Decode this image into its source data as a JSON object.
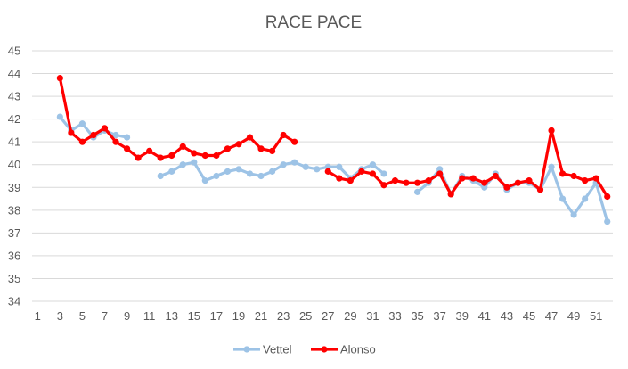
{
  "chart_data": {
    "type": "line",
    "title": "RACE PACE",
    "xlabel": "",
    "ylabel": "",
    "ylim": [
      34,
      45
    ],
    "yticks": [
      34,
      35,
      36,
      37,
      38,
      39,
      40,
      41,
      42,
      43,
      44,
      45
    ],
    "xlim": [
      1,
      52
    ],
    "xticks": [
      1,
      3,
      5,
      7,
      9,
      11,
      13,
      15,
      17,
      19,
      21,
      23,
      25,
      27,
      29,
      31,
      33,
      35,
      37,
      39,
      41,
      43,
      45,
      47,
      49,
      51
    ],
    "grid": true,
    "legend_position": "bottom",
    "series": [
      {
        "name": "Vettel",
        "color": "#9dc3e6",
        "points": [
          [
            3,
            42.1
          ],
          [
            4,
            41.5
          ],
          [
            5,
            41.8
          ],
          [
            6,
            41.2
          ],
          [
            7,
            41.5
          ],
          [
            8,
            41.3
          ],
          [
            9,
            41.2
          ],
          null,
          [
            12,
            39.5
          ],
          [
            13,
            39.7
          ],
          [
            14,
            40.0
          ],
          [
            15,
            40.1
          ],
          [
            16,
            39.3
          ],
          [
            17,
            39.5
          ],
          [
            18,
            39.7
          ],
          [
            19,
            39.8
          ],
          [
            20,
            39.6
          ],
          [
            21,
            39.5
          ],
          [
            22,
            39.7
          ],
          [
            23,
            40.0
          ],
          [
            24,
            40.1
          ],
          [
            25,
            39.9
          ],
          [
            26,
            39.8
          ],
          [
            27,
            39.9
          ],
          [
            28,
            39.9
          ],
          [
            29,
            39.4
          ],
          [
            30,
            39.8
          ],
          [
            31,
            40.0
          ],
          [
            32,
            39.6
          ],
          null,
          [
            35,
            38.8
          ],
          [
            36,
            39.2
          ],
          [
            37,
            39.8
          ],
          [
            38,
            38.7
          ],
          [
            39,
            39.5
          ],
          [
            40,
            39.3
          ],
          [
            41,
            39.0
          ],
          [
            42,
            39.6
          ],
          [
            43,
            38.9
          ],
          [
            44,
            39.2
          ],
          [
            45,
            39.2
          ],
          [
            46,
            38.9
          ],
          [
            47,
            39.9
          ],
          [
            48,
            38.5
          ],
          [
            49,
            37.8
          ],
          [
            50,
            38.5
          ],
          [
            51,
            39.2
          ],
          [
            52,
            37.5
          ]
        ]
      },
      {
        "name": "Alonso",
        "color": "#ff0000",
        "points": [
          [
            3,
            43.8
          ],
          [
            4,
            41.4
          ],
          [
            5,
            41.0
          ],
          [
            6,
            41.3
          ],
          [
            7,
            41.6
          ],
          [
            8,
            41.0
          ],
          [
            9,
            40.7
          ],
          [
            10,
            40.3
          ],
          [
            11,
            40.6
          ],
          [
            12,
            40.3
          ],
          [
            13,
            40.4
          ],
          [
            14,
            40.8
          ],
          [
            15,
            40.5
          ],
          [
            16,
            40.4
          ],
          [
            17,
            40.4
          ],
          [
            18,
            40.7
          ],
          [
            19,
            40.9
          ],
          [
            20,
            41.2
          ],
          [
            21,
            40.7
          ],
          [
            22,
            40.6
          ],
          [
            23,
            41.3
          ],
          [
            24,
            41.0
          ],
          null,
          [
            27,
            39.7
          ],
          [
            28,
            39.4
          ],
          [
            29,
            39.3
          ],
          [
            30,
            39.7
          ],
          [
            31,
            39.6
          ],
          [
            32,
            39.1
          ],
          [
            33,
            39.3
          ],
          [
            34,
            39.2
          ],
          [
            35,
            39.2
          ],
          [
            36,
            39.3
          ],
          [
            37,
            39.6
          ],
          [
            38,
            38.7
          ],
          [
            39,
            39.4
          ],
          [
            40,
            39.4
          ],
          [
            41,
            39.2
          ],
          [
            42,
            39.5
          ],
          [
            43,
            39.0
          ],
          [
            44,
            39.2
          ],
          [
            45,
            39.3
          ],
          [
            46,
            38.9
          ],
          [
            47,
            41.5
          ],
          [
            48,
            39.6
          ],
          [
            49,
            39.5
          ],
          [
            50,
            39.3
          ],
          [
            51,
            39.4
          ],
          [
            52,
            38.6
          ]
        ]
      }
    ]
  }
}
